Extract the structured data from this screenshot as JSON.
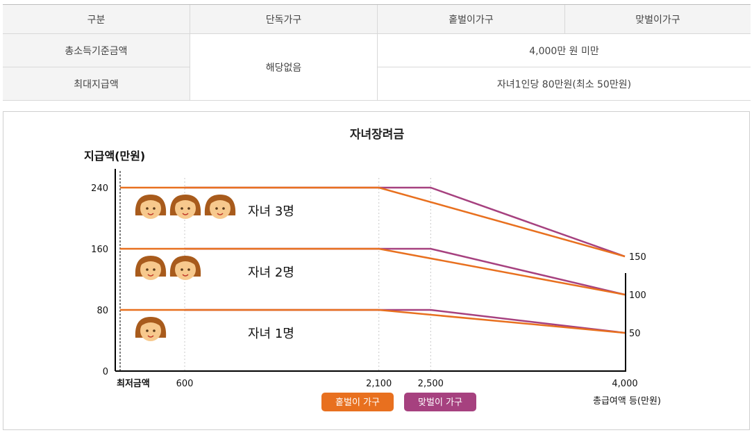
{
  "table": {
    "headers": [
      "구분",
      "단독가구",
      "홑벌이가구",
      "맞벌이가구"
    ],
    "rows": [
      {
        "label": "총소득기준금액",
        "value": "4,000만 원 미만"
      },
      {
        "label": "최대지급액",
        "value": "자녀1인당 80만원(최소 50만원)"
      }
    ],
    "single_household_value": "해당없음"
  },
  "colors": {
    "single_income": "#e8701f",
    "dual_income": "#a6417f",
    "face": "#f7c98d",
    "hair": "#a85b1c"
  },
  "chart_data": {
    "type": "line",
    "title": "자녀장려금",
    "ylabel": "지급액(만원)",
    "xlabel": "총급여액 등(만원)",
    "ylim": [
      0,
      240
    ],
    "xlim": [
      "최저금액",
      4000
    ],
    "y_ticks": [
      0,
      80,
      160,
      240
    ],
    "x_tick_labels": [
      "최저금액",
      "600",
      "2,100",
      "2,500",
      "4,000"
    ],
    "right_tick_labels": [
      "150",
      "100",
      "50"
    ],
    "legend": [
      "홑벌이 가구",
      "맞벌이 가구"
    ],
    "groups": [
      {
        "label": "자녀 3명",
        "children": 3,
        "single_income": [
          [
            "최저금액",
            240
          ],
          [
            2100,
            240
          ],
          [
            4000,
            150
          ]
        ],
        "dual_income": [
          [
            600,
            240
          ],
          [
            2500,
            240
          ],
          [
            4000,
            150
          ]
        ]
      },
      {
        "label": "자녀 2명",
        "children": 2,
        "single_income": [
          [
            "최저금액",
            160
          ],
          [
            2100,
            160
          ],
          [
            4000,
            100
          ]
        ],
        "dual_income": [
          [
            600,
            160
          ],
          [
            2500,
            160
          ],
          [
            4000,
            100
          ]
        ]
      },
      {
        "label": "자녀 1명",
        "children": 1,
        "single_income": [
          [
            "최저금액",
            80
          ],
          [
            2100,
            80
          ],
          [
            4000,
            50
          ]
        ],
        "dual_income": [
          [
            600,
            80
          ],
          [
            2500,
            80
          ],
          [
            4000,
            50
          ]
        ]
      }
    ]
  }
}
